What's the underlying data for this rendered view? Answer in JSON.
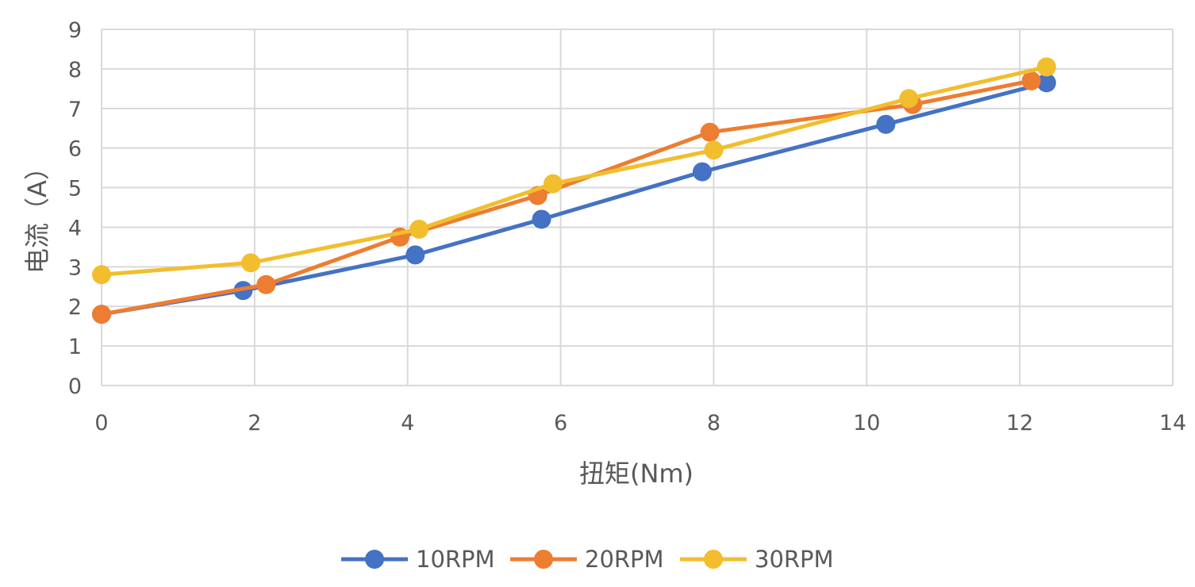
{
  "chart_data": {
    "type": "line",
    "xlabel": "扭矩(Nm)",
    "ylabel": "电流（A）",
    "xlim": [
      0,
      14
    ],
    "ylim": [
      0,
      9
    ],
    "xticks": [
      "0",
      "2",
      "4",
      "6",
      "8",
      "10",
      "12",
      "14"
    ],
    "yticks": [
      "0",
      "1",
      "2",
      "3",
      "4",
      "5",
      "6",
      "7",
      "8",
      "9"
    ],
    "grid": true,
    "legend_position": "bottom",
    "series": [
      {
        "name": "10RPM",
        "color": "#4472C4",
        "x": [
          0,
          1.85,
          4.1,
          5.75,
          7.85,
          10.25,
          12.35
        ],
        "y": [
          1.8,
          2.4,
          3.3,
          4.2,
          5.4,
          6.6,
          7.65
        ]
      },
      {
        "name": "20RPM",
        "color": "#ED7D31",
        "x": [
          0,
          2.15,
          3.9,
          5.7,
          7.95,
          10.6,
          12.15
        ],
        "y": [
          1.8,
          2.55,
          3.75,
          4.8,
          6.4,
          7.1,
          7.7
        ]
      },
      {
        "name": "30RPM",
        "color": "#F2BE2E",
        "x": [
          0,
          1.95,
          4.15,
          5.9,
          8.0,
          10.55,
          12.35
        ],
        "y": [
          2.8,
          3.1,
          3.95,
          5.1,
          5.95,
          7.25,
          8.05
        ]
      }
    ]
  }
}
